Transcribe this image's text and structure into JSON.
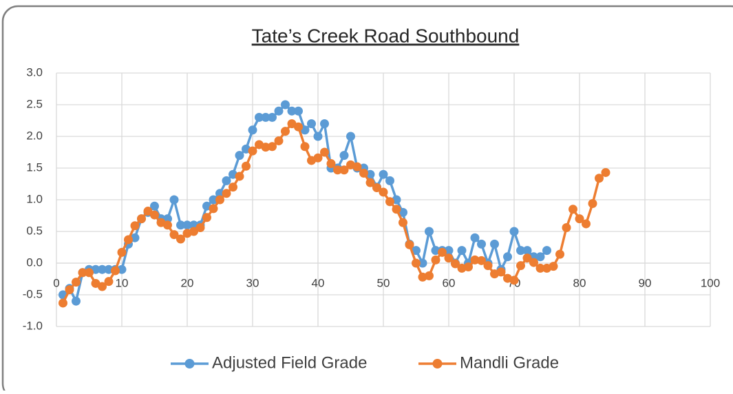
{
  "chart_data": {
    "type": "line",
    "title": "Tate’s Creek Road Southbound",
    "x": [
      1,
      2,
      3,
      4,
      5,
      6,
      7,
      8,
      9,
      10,
      11,
      12,
      13,
      14,
      15,
      16,
      17,
      18,
      19,
      20,
      21,
      22,
      23,
      24,
      25,
      26,
      27,
      28,
      29,
      30,
      31,
      32,
      33,
      34,
      35,
      36,
      37,
      38,
      39,
      40,
      41,
      42,
      43,
      44,
      45,
      46,
      47,
      48,
      49,
      50,
      51,
      52,
      53,
      54,
      55,
      56,
      57,
      58,
      59,
      60,
      61,
      62,
      63,
      64,
      65,
      66,
      67,
      68,
      69,
      70,
      71,
      72,
      73,
      74,
      75,
      76,
      77,
      78,
      79,
      80,
      81,
      82,
      83,
      84
    ],
    "series": [
      {
        "name": "Adjusted Field Grade",
        "color": "#5b9bd5",
        "values": [
          -0.5,
          -0.4,
          -0.6,
          -0.15,
          -0.1,
          -0.1,
          -0.1,
          -0.1,
          -0.1,
          -0.1,
          0.3,
          0.4,
          0.7,
          0.8,
          0.9,
          0.7,
          0.7,
          1.0,
          0.6,
          0.6,
          0.6,
          0.6,
          0.9,
          1.0,
          1.1,
          1.3,
          1.4,
          1.7,
          1.8,
          2.1,
          2.3,
          2.3,
          2.3,
          2.4,
          2.5,
          2.4,
          2.4,
          2.1,
          2.2,
          2.0,
          2.2,
          1.5,
          1.5,
          1.7,
          2.0,
          1.5,
          1.5,
          1.4,
          1.2,
          1.4,
          1.3,
          1.0,
          0.8,
          0.3,
          0.2,
          0.0,
          0.5,
          0.2,
          0.2,
          0.2,
          0.0,
          0.2,
          0.0,
          0.4,
          0.3,
          0.0,
          0.3,
          -0.1,
          0.1,
          0.5,
          0.2,
          0.2,
          0.1,
          0.1,
          0.2,
          null,
          null,
          null,
          null,
          null,
          null,
          null,
          null,
          null
        ]
      },
      {
        "name": "Mandli Grade",
        "color": "#ed7d31",
        "values": [
          -0.63,
          -0.42,
          -0.3,
          -0.15,
          -0.15,
          -0.32,
          -0.37,
          -0.29,
          -0.12,
          0.17,
          0.37,
          0.59,
          0.7,
          0.82,
          0.76,
          0.64,
          0.6,
          0.45,
          0.38,
          0.47,
          0.5,
          0.56,
          0.72,
          0.86,
          1.0,
          1.1,
          1.2,
          1.37,
          1.53,
          1.77,
          1.87,
          1.83,
          1.84,
          1.93,
          2.08,
          2.2,
          2.15,
          1.84,
          1.62,
          1.66,
          1.75,
          1.57,
          1.47,
          1.47,
          1.55,
          1.52,
          1.42,
          1.27,
          1.19,
          1.12,
          0.97,
          0.85,
          0.64,
          0.29,
          0.0,
          -0.22,
          -0.2,
          0.05,
          0.17,
          0.08,
          -0.01,
          -0.08,
          -0.06,
          0.05,
          0.04,
          -0.04,
          -0.17,
          -0.14,
          -0.24,
          -0.27,
          -0.04,
          0.08,
          0.01,
          -0.08,
          -0.08,
          -0.05,
          0.14,
          0.56,
          0.85,
          0.7,
          0.62,
          0.94,
          1.34,
          1.43
        ]
      }
    ],
    "xlim": [
      0,
      100
    ],
    "xticks": [
      0,
      10,
      20,
      30,
      40,
      50,
      60,
      70,
      80,
      90,
      100
    ],
    "ylim": [
      -1,
      3
    ],
    "yticks": [
      {
        "value": -1,
        "label": "-1.0"
      },
      -0.5,
      {
        "value": 0,
        "label": "0.0"
      },
      0.5,
      {
        "value": 1,
        "label": "1.0"
      },
      1.5,
      {
        "value": 2,
        "label": "2.0"
      },
      2.5,
      {
        "value": 3,
        "label": "3.0"
      }
    ],
    "grid": true,
    "legend": "bottom"
  }
}
